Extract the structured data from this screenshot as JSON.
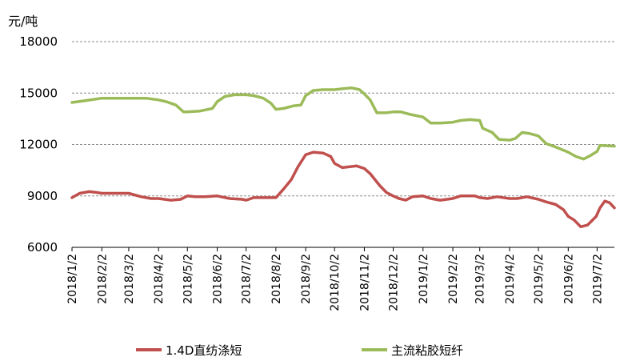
{
  "chart_data": {
    "type": "line",
    "y_unit_label": "元/吨",
    "ylim": [
      6000,
      18000
    ],
    "yticks": [
      "6000",
      "9000",
      "12000",
      "15000",
      "18000"
    ],
    "y_grid": true,
    "x_tick_labels": [
      "2018/1/2",
      "2018/2/2",
      "2018/3/2",
      "2018/4/2",
      "2018/5/2",
      "2018/6/2",
      "2018/7/2",
      "2018/8/2",
      "2018/9/2",
      "2018/10/2",
      "2018/11/2",
      "2018/12/2",
      "2019/1/2",
      "2019/2/2",
      "2019/3/2",
      "2019/4/2",
      "2019/5/2",
      "2019/6/2",
      "2019/7/2"
    ],
    "legend_position": "bottom",
    "series": [
      {
        "name": "1.4D直纺涤短",
        "color": "#c0504d",
        "points": [
          [
            "2018/1/2",
            8900
          ],
          [
            "2018/1/10",
            9150
          ],
          [
            "2018/1/20",
            9250
          ],
          [
            "2018/1/28",
            9200
          ],
          [
            "2018/2/2",
            9150
          ],
          [
            "2018/2/15",
            9150
          ],
          [
            "2018/3/2",
            9150
          ],
          [
            "2018/3/15",
            8950
          ],
          [
            "2018/3/25",
            8850
          ],
          [
            "2018/4/2",
            8850
          ],
          [
            "2018/4/15",
            8750
          ],
          [
            "2018/4/25",
            8800
          ],
          [
            "2018/5/2",
            9000
          ],
          [
            "2018/5/10",
            8950
          ],
          [
            "2018/5/20",
            8950
          ],
          [
            "2018/6/2",
            9000
          ],
          [
            "2018/6/15",
            8850
          ],
          [
            "2018/6/28",
            8800
          ],
          [
            "2018/7/2",
            8750
          ],
          [
            "2018/7/10",
            8900
          ],
          [
            "2018/7/20",
            8900
          ],
          [
            "2018/8/2",
            8900
          ],
          [
            "2018/8/10",
            9400
          ],
          [
            "2018/8/18",
            9950
          ],
          [
            "2018/8/25",
            10700
          ],
          [
            "2018/9/2",
            11400
          ],
          [
            "2018/9/10",
            11550
          ],
          [
            "2018/9/20",
            11500
          ],
          [
            "2018/9/28",
            11300
          ],
          [
            "2018/10/2",
            10900
          ],
          [
            "2018/10/10",
            10650
          ],
          [
            "2018/10/18",
            10700
          ],
          [
            "2018/10/25",
            10750
          ],
          [
            "2018/11/2",
            10600
          ],
          [
            "2018/11/8",
            10300
          ],
          [
            "2018/11/18",
            9600
          ],
          [
            "2018/11/25",
            9200
          ],
          [
            "2018/12/2",
            9000
          ],
          [
            "2018/12/8",
            8850
          ],
          [
            "2018/12/15",
            8750
          ],
          [
            "2018/12/22",
            8950
          ],
          [
            "2019/1/2",
            9000
          ],
          [
            "2019/1/10",
            8850
          ],
          [
            "2019/1/20",
            8750
          ],
          [
            "2019/2/2",
            8850
          ],
          [
            "2019/2/10",
            9000
          ],
          [
            "2019/2/25",
            9000
          ],
          [
            "2019/3/2",
            8900
          ],
          [
            "2019/3/10",
            8850
          ],
          [
            "2019/3/20",
            8950
          ],
          [
            "2019/4/2",
            8850
          ],
          [
            "2019/4/10",
            8850
          ],
          [
            "2019/4/20",
            8950
          ],
          [
            "2019/5/2",
            8800
          ],
          [
            "2019/5/10",
            8650
          ],
          [
            "2019/5/20",
            8500
          ],
          [
            "2019/5/28",
            8200
          ],
          [
            "2019/6/2",
            7800
          ],
          [
            "2019/6/8",
            7600
          ],
          [
            "2019/6/15",
            7200
          ],
          [
            "2019/6/22",
            7300
          ],
          [
            "2019/7/1",
            7800
          ],
          [
            "2019/7/5",
            8300
          ],
          [
            "2019/7/10",
            8700
          ],
          [
            "2019/7/15",
            8600
          ],
          [
            "2019/7/20",
            8300
          ]
        ]
      },
      {
        "name": "主流粘胶短纤",
        "color": "#9bbb59",
        "points": [
          [
            "2018/1/2",
            14450
          ],
          [
            "2018/1/15",
            14550
          ],
          [
            "2018/2/2",
            14700
          ],
          [
            "2018/2/20",
            14700
          ],
          [
            "2018/3/2",
            14700
          ],
          [
            "2018/3/20",
            14700
          ],
          [
            "2018/4/2",
            14600
          ],
          [
            "2018/4/10",
            14500
          ],
          [
            "2018/4/20",
            14300
          ],
          [
            "2018/4/28",
            13900
          ],
          [
            "2018/5/2",
            13900
          ],
          [
            "2018/5/15",
            13950
          ],
          [
            "2018/5/28",
            14100
          ],
          [
            "2018/6/2",
            14500
          ],
          [
            "2018/6/10",
            14800
          ],
          [
            "2018/6/20",
            14900
          ],
          [
            "2018/7/2",
            14900
          ],
          [
            "2018/7/10",
            14850
          ],
          [
            "2018/7/20",
            14700
          ],
          [
            "2018/7/28",
            14400
          ],
          [
            "2018/8/2",
            14050
          ],
          [
            "2018/8/10",
            14100
          ],
          [
            "2018/8/20",
            14250
          ],
          [
            "2018/8/28",
            14300
          ],
          [
            "2018/9/2",
            14850
          ],
          [
            "2018/9/10",
            15150
          ],
          [
            "2018/9/20",
            15200
          ],
          [
            "2018/10/2",
            15200
          ],
          [
            "2018/10/10",
            15250
          ],
          [
            "2018/10/20",
            15300
          ],
          [
            "2018/10/28",
            15200
          ],
          [
            "2018/11/2",
            14950
          ],
          [
            "2018/11/8",
            14600
          ],
          [
            "2018/11/15",
            13850
          ],
          [
            "2018/11/25",
            13850
          ],
          [
            "2018/12/2",
            13900
          ],
          [
            "2018/12/10",
            13900
          ],
          [
            "2018/12/20",
            13750
          ],
          [
            "2019/1/2",
            13600
          ],
          [
            "2019/1/10",
            13250
          ],
          [
            "2019/1/20",
            13250
          ],
          [
            "2019/2/2",
            13300
          ],
          [
            "2019/2/10",
            13400
          ],
          [
            "2019/2/20",
            13450
          ],
          [
            "2019/3/2",
            13400
          ],
          [
            "2019/3/5",
            12950
          ],
          [
            "2019/3/15",
            12700
          ],
          [
            "2019/3/22",
            12300
          ],
          [
            "2019/4/2",
            12250
          ],
          [
            "2019/4/8",
            12350
          ],
          [
            "2019/4/15",
            12700
          ],
          [
            "2019/4/22",
            12650
          ],
          [
            "2019/5/2",
            12500
          ],
          [
            "2019/5/10",
            12050
          ],
          [
            "2019/5/20",
            11850
          ],
          [
            "2019/6/2",
            11550
          ],
          [
            "2019/6/10",
            11300
          ],
          [
            "2019/6/18",
            11150
          ],
          [
            "2019/6/25",
            11350
          ],
          [
            "2019/7/2",
            11600
          ],
          [
            "2019/7/5",
            11950
          ],
          [
            "2019/7/20",
            11900
          ]
        ]
      }
    ]
  }
}
